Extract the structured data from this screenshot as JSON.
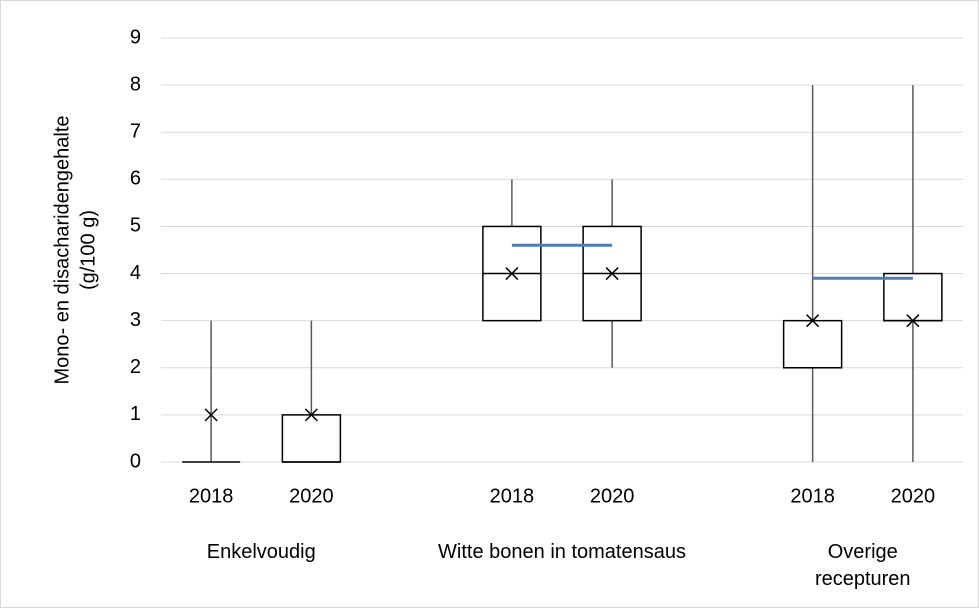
{
  "chart_data": {
    "type": "box",
    "ylabel": [
      "Mono- en disacharidengehalte",
      "(g/100 g)"
    ],
    "categories": [
      "2018",
      "2020",
      "2018",
      "2020",
      "2018",
      "2020"
    ],
    "group_labels": [
      "Enkelvoudig",
      "Witte bonen in tomatensaus",
      "Overige recepturen"
    ],
    "boxes": [
      {
        "min": 0,
        "q1": 0,
        "median": 0,
        "q3": 0,
        "max": 3,
        "mean": 1
      },
      {
        "min": 0,
        "q1": 0,
        "median": 0,
        "q3": 1,
        "max": 3,
        "mean": 1
      },
      {
        "min": 3,
        "q1": 3,
        "median": 4,
        "q3": 5,
        "max": 6,
        "mean": 4
      },
      {
        "min": 2,
        "q1": 3,
        "median": 4,
        "q3": 5,
        "max": 6,
        "mean": 4
      },
      {
        "min": 0,
        "q1": 2,
        "median": 2,
        "q3": 3,
        "max": 8,
        "mean": 3
      },
      {
        "min": 0,
        "q1": 3,
        "median": 3,
        "q3": 4,
        "max": 8,
        "mean": 3
      }
    ],
    "group_lines": {
      "color": "#4a7ebb",
      "values": [
        null,
        4.6,
        3.9
      ]
    },
    "ylim": [
      0,
      9
    ],
    "yticks": [
      0,
      1,
      2,
      3,
      4,
      5,
      6,
      7,
      8,
      9
    ],
    "grid": true
  }
}
